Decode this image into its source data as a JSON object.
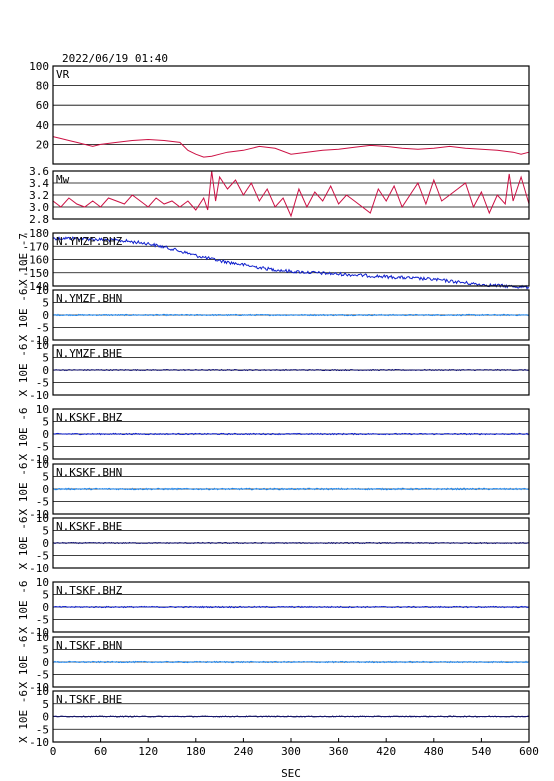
{
  "header": {
    "timestamp": "2022/06/19 01:40"
  },
  "chart_data": [
    {
      "type": "line",
      "panel": "VR",
      "label": "VR",
      "color": "#cc1144",
      "ylim": [
        0,
        100
      ],
      "yticks": [
        0,
        20,
        40,
        60,
        80,
        100
      ],
      "ytick_labels": [
        "",
        "20",
        "40",
        "60",
        "80",
        "100"
      ],
      "grid": true,
      "xlim": [
        0,
        600
      ],
      "x": [
        0,
        10,
        20,
        30,
        40,
        50,
        60,
        80,
        100,
        120,
        140,
        160,
        170,
        180,
        190,
        200,
        210,
        220,
        240,
        260,
        280,
        300,
        320,
        340,
        360,
        380,
        400,
        420,
        440,
        460,
        480,
        500,
        520,
        540,
        560,
        580,
        590,
        600
      ],
      "y": [
        28,
        26,
        24,
        22,
        20,
        18,
        20,
        22,
        24,
        25,
        24,
        22,
        14,
        10,
        7,
        8,
        10,
        12,
        14,
        18,
        16,
        10,
        12,
        14,
        15,
        17,
        19,
        18,
        16,
        15,
        16,
        18,
        16,
        15,
        14,
        12,
        10,
        12
      ]
    },
    {
      "type": "line",
      "panel": "Mw",
      "label": "Mw",
      "color": "#cc1144",
      "ylim": [
        2.8,
        3.6
      ],
      "yticks": [
        2.8,
        3.0,
        3.2,
        3.4,
        3.6
      ],
      "ytick_labels": [
        "2.8",
        "3.0",
        "3.2",
        "3.4",
        "3.6"
      ],
      "grid": true,
      "xlim": [
        0,
        600
      ],
      "x": [
        0,
        10,
        20,
        30,
        40,
        50,
        60,
        70,
        80,
        90,
        100,
        110,
        120,
        130,
        140,
        150,
        160,
        170,
        180,
        190,
        195,
        200,
        205,
        210,
        220,
        230,
        240,
        250,
        260,
        270,
        280,
        290,
        300,
        310,
        320,
        330,
        340,
        350,
        360,
        370,
        380,
        390,
        400,
        410,
        420,
        430,
        440,
        450,
        460,
        470,
        480,
        490,
        500,
        510,
        520,
        530,
        540,
        550,
        560,
        570,
        575,
        580,
        590,
        600
      ],
      "y": [
        3.1,
        3.0,
        3.15,
        3.05,
        3.0,
        3.1,
        3.0,
        3.15,
        3.1,
        3.05,
        3.2,
        3.1,
        3.0,
        3.15,
        3.05,
        3.1,
        3.0,
        3.1,
        2.95,
        3.15,
        2.95,
        3.6,
        3.1,
        3.5,
        3.3,
        3.45,
        3.2,
        3.4,
        3.1,
        3.3,
        3.0,
        3.15,
        2.85,
        3.3,
        3.0,
        3.25,
        3.1,
        3.35,
        3.05,
        3.2,
        3.1,
        3.0,
        2.9,
        3.3,
        3.1,
        3.35,
        3.0,
        3.2,
        3.4,
        3.05,
        3.45,
        3.1,
        3.2,
        3.3,
        3.4,
        3.0,
        3.25,
        2.9,
        3.2,
        3.05,
        3.55,
        3.1,
        3.5,
        3.05
      ]
    },
    {
      "type": "line",
      "panel": "N.YMZF.BHZ",
      "label": "N.YMZF.BHZ",
      "color": "#1020cc",
      "ylabel": "X 10E -7",
      "ylim": [
        -140,
        -180
      ],
      "yticks": [
        -140,
        -150,
        -160,
        -170,
        -180
      ],
      "ytick_labels": [
        "-140",
        "-150",
        "-160",
        "-170",
        "-180"
      ],
      "grid": true,
      "xlim": [
        0,
        600
      ],
      "x": [
        0,
        30,
        60,
        90,
        120,
        150,
        180,
        210,
        240,
        270,
        300,
        330,
        360,
        390,
        420,
        450,
        480,
        510,
        540,
        570,
        600
      ],
      "y": [
        -176,
        -176,
        -175,
        -174,
        -172,
        -168,
        -163,
        -159,
        -156,
        -153,
        -151,
        -150,
        -149,
        -148,
        -147,
        -146,
        -145,
        -143,
        -141,
        -140,
        -139
      ],
      "noise": 1.2
    },
    {
      "type": "line",
      "panel": "N.YMZF.BHN",
      "label": "N.YMZF.BHN",
      "color": "#2288ee",
      "ylabel": "X 10E -6",
      "ylim": [
        -10,
        10
      ],
      "yticks": [
        -10,
        -5,
        0,
        5,
        10
      ],
      "ytick_labels": [
        "-10",
        "-5",
        "0",
        "5",
        "10"
      ],
      "grid": true,
      "xlim": [
        0,
        600
      ],
      "x": [
        0,
        600
      ],
      "y": [
        0,
        0
      ],
      "noise": 0.25
    },
    {
      "type": "line",
      "panel": "N.YMZF.BHE",
      "label": "N.YMZF.BHE",
      "color": "#101070",
      "ylabel": "X 10E -6",
      "ylim": [
        -10,
        10
      ],
      "yticks": [
        -10,
        -5,
        0,
        5,
        10
      ],
      "ytick_labels": [
        "-10",
        "-5",
        "0",
        "5",
        "10"
      ],
      "grid": true,
      "xlim": [
        0,
        600
      ],
      "x": [
        0,
        600
      ],
      "y": [
        0,
        0
      ],
      "noise": 0.2
    },
    {
      "type": "line",
      "panel": "N.KSKF.BHZ",
      "label": "N.KSKF.BHZ",
      "color": "#1020cc",
      "ylabel": "X 10E -6",
      "ylim": [
        -10,
        10
      ],
      "yticks": [
        -10,
        -5,
        0,
        5,
        10
      ],
      "ytick_labels": [
        "-10",
        "-5",
        "0",
        "5",
        "10"
      ],
      "grid": true,
      "xlim": [
        0,
        600
      ],
      "x": [
        0,
        600
      ],
      "y": [
        0,
        0
      ],
      "noise": 0.25
    },
    {
      "type": "line",
      "panel": "N.KSKF.BHN",
      "label": "N.KSKF.BHN",
      "color": "#2288ee",
      "ylabel": "X 10E -6",
      "ylim": [
        -10,
        10
      ],
      "yticks": [
        -10,
        -5,
        0,
        5,
        10
      ],
      "ytick_labels": [
        "-10",
        "-5",
        "0",
        "5",
        "10"
      ],
      "grid": true,
      "xlim": [
        0,
        600
      ],
      "x": [
        0,
        600
      ],
      "y": [
        0,
        0
      ],
      "noise": 0.3
    },
    {
      "type": "line",
      "panel": "N.KSKF.BHE",
      "label": "N.KSKF.BHE",
      "color": "#101070",
      "ylabel": "X 10E -6",
      "ylim": [
        -10,
        10
      ],
      "yticks": [
        -10,
        -5,
        0,
        5,
        10
      ],
      "ytick_labels": [
        "-10",
        "-5",
        "0",
        "5",
        "10"
      ],
      "grid": true,
      "xlim": [
        0,
        600
      ],
      "x": [
        0,
        600
      ],
      "y": [
        0,
        0
      ],
      "noise": 0.2
    },
    {
      "type": "line",
      "panel": "N.TSKF.BHZ",
      "label": "N.TSKF.BHZ",
      "color": "#1020cc",
      "ylabel": "X 10E -6",
      "ylim": [
        -10,
        10
      ],
      "yticks": [
        -10,
        -5,
        0,
        5,
        10
      ],
      "ytick_labels": [
        "-10",
        "-5",
        "0",
        "5",
        "10"
      ],
      "grid": true,
      "xlim": [
        0,
        600
      ],
      "x": [
        0,
        600
      ],
      "y": [
        0,
        0
      ],
      "noise": 0.25
    },
    {
      "type": "line",
      "panel": "N.TSKF.BHN",
      "label": "N.TSKF.BHN",
      "color": "#2288ee",
      "ylabel": "X 10E -6",
      "ylim": [
        -10,
        10
      ],
      "yticks": [
        -10,
        -5,
        0,
        5,
        10
      ],
      "ytick_labels": [
        "-10",
        "-5",
        "0",
        "5",
        "10"
      ],
      "grid": true,
      "xlim": [
        0,
        600
      ],
      "x": [
        0,
        600
      ],
      "y": [
        0,
        0
      ],
      "noise": 0.25
    },
    {
      "type": "line",
      "panel": "N.TSKF.BHE",
      "label": "N.TSKF.BHE",
      "color": "#101070",
      "ylabel": "X 10E -6",
      "ylim": [
        -10,
        10
      ],
      "yticks": [
        -10,
        -5,
        0,
        5,
        10
      ],
      "ytick_labels": [
        "-10",
        "-5",
        "0",
        "5",
        "10"
      ],
      "grid": true,
      "xlim": [
        0,
        600
      ],
      "x": [
        0,
        600
      ],
      "y": [
        0,
        0
      ],
      "noise": 0.2
    }
  ],
  "x_axis": {
    "xlabel": "SEC",
    "xlim": [
      0,
      600
    ],
    "ticks": [
      0,
      60,
      120,
      180,
      240,
      300,
      360,
      420,
      480,
      540,
      600
    ]
  }
}
